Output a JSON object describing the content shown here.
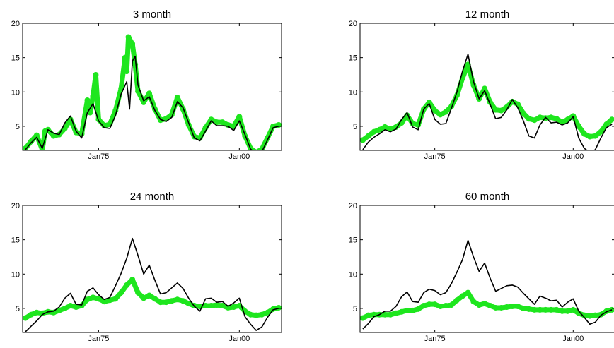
{
  "colors": {
    "fitted": "#1ee61e",
    "actual": "#000000",
    "axes": "#000000",
    "background": "#ffffff"
  },
  "chart_data": [
    {
      "type": "line",
      "title": "3 month",
      "ylim": [
        1.5,
        20
      ],
      "yticks": [
        5,
        10,
        15,
        20
      ],
      "xlim": [
        1961.5,
        2007.5
      ],
      "xticks": [
        {
          "value": 1975,
          "label": "Jan75"
        },
        {
          "value": 2000,
          "label": "Jan00"
        }
      ],
      "grid": false,
      "series": [
        {
          "style": "dots",
          "x": [
            1962,
            1963,
            1964,
            1965,
            1965.5,
            1966,
            1967,
            1968,
            1969,
            1970,
            1971,
            1972,
            1973,
            1973.5,
            1974,
            1974.5,
            1975,
            1976,
            1977,
            1978,
            1979,
            1979.7,
            1980,
            1980.3,
            1981,
            1981.5,
            1982,
            1983,
            1984,
            1985,
            1986,
            1987,
            1988,
            1989,
            1990,
            1991,
            1992,
            1993,
            1994,
            1995,
            1996,
            1997,
            1998,
            1999,
            2000,
            2001,
            2002,
            2003,
            2004,
            2005,
            2006,
            2007
          ],
          "y": [
            1.8,
            2.8,
            3.7,
            1.6,
            4.3,
            4.5,
            3.6,
            3.8,
            4.7,
            6,
            4.1,
            3.9,
            8.8,
            7,
            9.4,
            12.5,
            6,
            5.1,
            5.3,
            7.3,
            10.5,
            15,
            13,
            18,
            17,
            14,
            10.1,
            8.5,
            9.8,
            7.5,
            5.9,
            6.1,
            6.7,
            9.2,
            7.5,
            5.2,
            3.5,
            3.3,
            4.8,
            6,
            5.6,
            5.6,
            5.2,
            5,
            6.4,
            3.6,
            1.8,
            1.2,
            1.7,
            3.3,
            5,
            5.2
          ]
        },
        {
          "style": "line",
          "x": [
            1962,
            1963,
            1964,
            1965,
            1966,
            1967,
            1968,
            1969,
            1970,
            1971,
            1972,
            1973,
            1974,
            1975,
            1976,
            1977,
            1978,
            1979,
            1980,
            1980.5,
            1981,
            1981.5,
            1982,
            1983,
            1984,
            1985,
            1986,
            1987,
            1988,
            1989,
            1990,
            1991,
            1992,
            1993,
            1994,
            1995,
            1996,
            1997,
            1998,
            1999,
            2000,
            2001,
            2002,
            2003,
            2004,
            2005,
            2006,
            2007
          ],
          "y": [
            1.6,
            2.6,
            3.4,
            1.8,
            4.5,
            4,
            3.8,
            5.5,
            6.5,
            4.3,
            3.3,
            7,
            8.3,
            5.8,
            4.8,
            4.7,
            6.6,
            9.7,
            11.5,
            7.5,
            14.5,
            15.2,
            11,
            8.7,
            9.3,
            7.3,
            6,
            5.7,
            6.3,
            8.6,
            7.7,
            5.5,
            3.3,
            2.9,
            4.3,
            5.8,
            5.1,
            5.1,
            5,
            4.4,
            5.8,
            3.8,
            1.7,
            1.1,
            1.3,
            3,
            4.8,
            5
          ]
        }
      ]
    },
    {
      "type": "line",
      "title": "12 month",
      "ylim": [
        1.5,
        20
      ],
      "yticks": [
        5,
        10,
        15,
        20
      ],
      "xlim": [
        1961.5,
        2007.5
      ],
      "xticks": [
        {
          "value": 1975,
          "label": "Jan75"
        },
        {
          "value": 2000,
          "label": "Jan00"
        }
      ],
      "grid": false,
      "series": [
        {
          "style": "dots",
          "x": [
            1962,
            1963,
            1964,
            1965,
            1966,
            1967,
            1968,
            1969,
            1970,
            1971,
            1972,
            1973,
            1974,
            1975,
            1976,
            1977,
            1978,
            1979,
            1980,
            1981,
            1982,
            1983,
            1984,
            1985,
            1986,
            1987,
            1988,
            1989,
            1990,
            1991,
            1992,
            1993,
            1994,
            1995,
            1996,
            1997,
            1998,
            1999,
            2000,
            2001,
            2002,
            2003,
            2004,
            2005,
            2006,
            2007
          ],
          "y": [
            3,
            3.6,
            4.2,
            4.5,
            4.9,
            4.6,
            4.9,
            5.5,
            6.6,
            5.4,
            5.2,
            7.5,
            8.5,
            7.3,
            6.7,
            7.1,
            7.9,
            9.5,
            12,
            14,
            11,
            9,
            10.5,
            8.5,
            7.4,
            7.3,
            7.8,
            8.6,
            8.2,
            6.9,
            6.1,
            5.9,
            6.3,
            6.2,
            6.3,
            6.1,
            5.6,
            6,
            6.5,
            5,
            3.9,
            3.5,
            3.6,
            4.2,
            5.3,
            6
          ]
        },
        {
          "style": "line",
          "x": [
            1962,
            1963,
            1964,
            1965,
            1966,
            1967,
            1968,
            1969,
            1970,
            1971,
            1972,
            1973,
            1974,
            1975,
            1976,
            1977,
            1978,
            1979,
            1980,
            1981,
            1982,
            1983,
            1984,
            1985,
            1986,
            1987,
            1988,
            1989,
            1990,
            1991,
            1992,
            1993,
            1994,
            1995,
            1996,
            1997,
            1998,
            1999,
            2000,
            2001,
            2002,
            2003,
            2004,
            2005,
            2006,
            2007
          ],
          "y": [
            1.6,
            2.7,
            3.4,
            3.9,
            4.5,
            4.2,
            4.6,
            6,
            7,
            4.9,
            4.5,
            7.5,
            8.3,
            6,
            5.3,
            5.4,
            7.6,
            10,
            13,
            15.5,
            11.5,
            9,
            10.2,
            8.2,
            6.1,
            6.3,
            7.4,
            8.9,
            7.7,
            5.8,
            3.6,
            3.3,
            5.2,
            6.3,
            5.5,
            5.6,
            5.2,
            5.5,
            6.4,
            3.3,
            1.8,
            1.2,
            1.6,
            3.3,
            4.8,
            5.3
          ]
        }
      ]
    },
    {
      "type": "line",
      "title": "24 month",
      "ylim": [
        1.5,
        20
      ],
      "yticks": [
        5,
        10,
        15,
        20
      ],
      "xlim": [
        1961.5,
        2007.5
      ],
      "xticks": [
        {
          "value": 1975,
          "label": "Jan75"
        },
        {
          "value": 2000,
          "label": "Jan00"
        }
      ],
      "grid": false,
      "series": [
        {
          "style": "dots",
          "x": [
            1962,
            1963,
            1964,
            1965,
            1966,
            1967,
            1968,
            1969,
            1970,
            1971,
            1972,
            1973,
            1974,
            1975,
            1976,
            1977,
            1978,
            1979,
            1980,
            1981,
            1982,
            1983,
            1984,
            1985,
            1986,
            1987,
            1988,
            1989,
            1990,
            1991,
            1992,
            1993,
            1994,
            1995,
            1996,
            1997,
            1998,
            1999,
            2000,
            2001,
            2002,
            2003,
            2004,
            2005,
            2006,
            2007
          ],
          "y": [
            3.6,
            4.1,
            4.4,
            4.3,
            4.5,
            4.4,
            4.7,
            5,
            5.4,
            5.2,
            5.4,
            6.3,
            6.6,
            6.4,
            6,
            6.2,
            6.4,
            7.3,
            8.4,
            9.2,
            7.3,
            6.5,
            6.9,
            6.4,
            5.9,
            5.9,
            6.1,
            6.3,
            6.1,
            5.7,
            5.4,
            5.3,
            5.4,
            5.4,
            5.5,
            5.4,
            5.1,
            5.2,
            5.4,
            4.6,
            4.1,
            4,
            4.1,
            4.4,
            4.9,
            5.1
          ]
        },
        {
          "style": "line",
          "x": [
            1962,
            1963,
            1964,
            1965,
            1966,
            1967,
            1968,
            1969,
            1970,
            1971,
            1972,
            1973,
            1974,
            1975,
            1976,
            1977,
            1978,
            1979,
            1980,
            1981,
            1982,
            1983,
            1984,
            1985,
            1986,
            1987,
            1988,
            1989,
            1990,
            1991,
            1992,
            1993,
            1994,
            1995,
            1996,
            1997,
            1998,
            1999,
            2000,
            2001,
            2002,
            2003,
            2004,
            2005,
            2006,
            2007
          ],
          "y": [
            1.6,
            2.4,
            3.2,
            4.1,
            4.5,
            4.6,
            5.2,
            6.5,
            7.2,
            5.6,
            5.5,
            7.5,
            8,
            7,
            6.3,
            6.6,
            8.3,
            10.1,
            12.3,
            15.2,
            12.7,
            10,
            11.3,
            9.1,
            7.1,
            7.3,
            8,
            8.7,
            7.9,
            6.5,
            5.3,
            4.6,
            6.4,
            6.5,
            5.9,
            6,
            5.3,
            5.8,
            6.5,
            3.8,
            2.7,
            1.8,
            2.3,
            3.7,
            4.8,
            5
          ]
        }
      ]
    },
    {
      "type": "line",
      "title": "60 month",
      "ylim": [
        1.5,
        20
      ],
      "yticks": [
        5,
        10,
        15,
        20
      ],
      "xlim": [
        1961.5,
        2007.5
      ],
      "xticks": [
        {
          "value": 1975,
          "label": "Jan75"
        },
        {
          "value": 2000,
          "label": "Jan00"
        }
      ],
      "grid": false,
      "series": [
        {
          "style": "dots",
          "x": [
            1962,
            1963,
            1964,
            1965,
            1966,
            1967,
            1968,
            1969,
            1970,
            1971,
            1972,
            1973,
            1974,
            1975,
            1976,
            1977,
            1978,
            1979,
            1980,
            1981,
            1982,
            1983,
            1984,
            1985,
            1986,
            1987,
            1988,
            1989,
            1990,
            1991,
            1992,
            1993,
            1994,
            1995,
            1996,
            1997,
            1998,
            1999,
            2000,
            2001,
            2002,
            2003,
            2004,
            2005,
            2006,
            2007
          ],
          "y": [
            3.6,
            4,
            4.1,
            4.1,
            4.1,
            4.1,
            4.3,
            4.5,
            4.7,
            4.7,
            4.9,
            5.4,
            5.6,
            5.6,
            5.3,
            5.4,
            5.5,
            6.2,
            6.8,
            7.3,
            6,
            5.5,
            5.7,
            5.4,
            5.1,
            5.1,
            5.2,
            5.3,
            5.3,
            5,
            4.9,
            4.8,
            4.8,
            4.8,
            4.8,
            4.8,
            4.6,
            4.6,
            4.8,
            4.3,
            4,
            3.9,
            4,
            4.1,
            4.6,
            4.8
          ]
        },
        {
          "style": "line",
          "x": [
            1962,
            1963,
            1964,
            1965,
            1966,
            1967,
            1968,
            1969,
            1970,
            1971,
            1972,
            1973,
            1974,
            1975,
            1976,
            1977,
            1978,
            1979,
            1980,
            1981,
            1982,
            1983,
            1984,
            1985,
            1986,
            1987,
            1988,
            1989,
            1990,
            1991,
            1992,
            1993,
            1994,
            1995,
            1996,
            1997,
            1998,
            1999,
            2000,
            2001,
            2002,
            2003,
            2004,
            2005,
            2006,
            2007
          ],
          "y": [
            2,
            2.8,
            3.8,
            4.1,
            4.6,
            4.6,
            5.3,
            6.7,
            7.4,
            6,
            5.9,
            7.3,
            7.8,
            7.6,
            7,
            7.3,
            8.6,
            10.3,
            12.1,
            14.9,
            12.5,
            10.4,
            11.6,
            9.4,
            7.5,
            7.9,
            8.3,
            8.4,
            8.1,
            7.2,
            6.4,
            5.6,
            6.8,
            6.5,
            6.1,
            6.2,
            5.2,
            5.9,
            6.4,
            4.6,
            3.7,
            2.7,
            3,
            4,
            4.5,
            4.8
          ]
        }
      ]
    }
  ]
}
